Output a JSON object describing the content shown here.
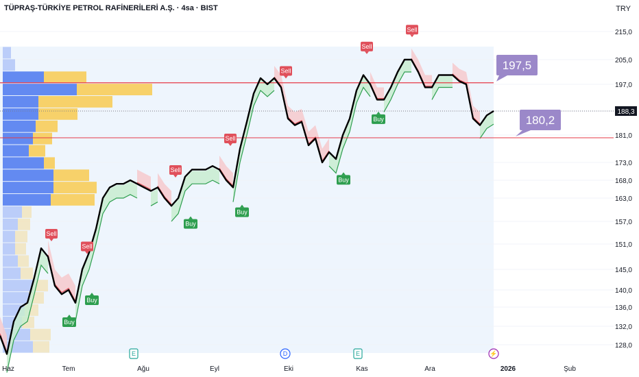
{
  "header": {
    "title": "TÜPRAŞ-TÜRKİYE PETROL RAFİNERİLERİ A.Ş. · 4sa · BIST",
    "currency": "TRY"
  },
  "colors": {
    "price_line": "#000000",
    "bull_fill": "#c8ecd0",
    "bull_line": "#2e9e4f",
    "bear_fill": "#f6c9cc",
    "bear_line": "#e0505b",
    "buy": "#2e9e4f",
    "sell": "#e0505b",
    "level": "#e63946",
    "callout": "#9b88c9",
    "vp_blue": "#5b84f0",
    "vp_yellow": "#f7cf62",
    "panel_bg": "#eef5fd"
  },
  "chart_data": {
    "type": "line",
    "title": "TÜPRAŞ-TÜRKİYE PETROL RAFİNERİLERİ A.Ş. · 4sa · BIST",
    "currency": "TRY",
    "ylim": [
      125,
      218
    ],
    "y_ticks": [
      "215,0",
      "205,0",
      "197,0",
      "188,3",
      "181,0",
      "173,0",
      "168,0",
      "163,0",
      "157,0",
      "151,0",
      "145,0",
      "140,0",
      "136,0",
      "132,0",
      "128,0"
    ],
    "x_ticks": [
      "Haz",
      "Tem",
      "Ağu",
      "Eyl",
      "Eki",
      "Kas",
      "Ara",
      "2026",
      "Şub"
    ],
    "last_price": 188.3,
    "last_price_label": "188,3",
    "levels": [
      {
        "value": 197.5,
        "label": "197,5"
      },
      {
        "value": 180.2,
        "label": "180,2"
      }
    ],
    "series": [
      {
        "x": [
          0,
          10,
          20,
          30,
          40,
          50,
          60,
          70,
          80,
          90,
          100,
          110,
          120,
          130,
          140,
          150,
          160,
          170,
          180,
          190,
          200,
          210,
          220,
          230,
          240,
          250,
          260,
          270,
          280,
          290,
          300,
          310,
          320,
          330,
          340,
          350,
          360,
          370,
          380,
          390,
          400,
          410,
          420,
          430,
          440,
          450,
          460,
          470,
          480,
          490,
          500,
          510,
          520,
          530,
          540,
          550,
          560,
          570,
          580,
          590,
          600,
          610,
          620,
          630,
          640,
          650,
          660,
          670,
          680,
          690,
          700,
          710,
          720
        ],
        "values": [
          130,
          126,
          133,
          136,
          137,
          143,
          150,
          148,
          141,
          139,
          140,
          137,
          145,
          149,
          155,
          163,
          166,
          167,
          167,
          168,
          167,
          166,
          165,
          166,
          163,
          161,
          163,
          169,
          171,
          171,
          171,
          172,
          171,
          168,
          166,
          177,
          185,
          194,
          199,
          197,
          199,
          196,
          186,
          184,
          185,
          178,
          180,
          173,
          176,
          174,
          181,
          186,
          195,
          200,
          197,
          192,
          192,
          196,
          201,
          205,
          205,
          201,
          196,
          196,
          200,
          200,
          200,
          198,
          197,
          186,
          184,
          187,
          188.3
        ]
      }
    ],
    "signals": [
      {
        "type": "Sell",
        "x": 75,
        "y": 151
      },
      {
        "type": "Sell",
        "x": 127,
        "y": 148
      },
      {
        "type": "Buy",
        "x": 101,
        "y": 135
      },
      {
        "type": "Buy",
        "x": 134,
        "y": 140
      },
      {
        "type": "Sell",
        "x": 256,
        "y": 168
      },
      {
        "type": "Buy",
        "x": 278,
        "y": 159
      },
      {
        "type": "Sell",
        "x": 336,
        "y": 177
      },
      {
        "type": "Buy",
        "x": 353,
        "y": 162
      },
      {
        "type": "Sell",
        "x": 417,
        "y": 198
      },
      {
        "type": "Buy",
        "x": 501,
        "y": 171
      },
      {
        "type": "Sell",
        "x": 535,
        "y": 206
      },
      {
        "type": "Buy",
        "x": 552,
        "y": 189
      },
      {
        "type": "Sell",
        "x": 601,
        "y": 212
      }
    ],
    "events": [
      {
        "label": "E",
        "x": 195
      },
      {
        "label": "D",
        "x": 416
      },
      {
        "label": "E",
        "x": 522
      },
      {
        "label": "⚡",
        "x": 720
      }
    ],
    "volume_profile": {
      "bands": [
        {
          "blue": 12,
          "yellow": 0
        },
        {
          "blue": 18,
          "yellow": 0
        },
        {
          "blue": 60,
          "yellow": 62
        },
        {
          "blue": 108,
          "yellow": 110
        },
        {
          "blue": 52,
          "yellow": 108
        },
        {
          "blue": 52,
          "yellow": 57
        },
        {
          "blue": 48,
          "yellow": 32
        },
        {
          "blue": 44,
          "yellow": 28
        },
        {
          "blue": 38,
          "yellow": 24
        },
        {
          "blue": 60,
          "yellow": 16
        },
        {
          "blue": 74,
          "yellow": 52
        },
        {
          "blue": 74,
          "yellow": 63
        },
        {
          "blue": 70,
          "yellow": 64
        },
        {
          "blue": 28,
          "yellow": 14
        },
        {
          "blue": 22,
          "yellow": 18
        },
        {
          "blue": 18,
          "yellow": 18
        },
        {
          "blue": 18,
          "yellow": 16
        },
        {
          "blue": 22,
          "yellow": 16
        },
        {
          "blue": 26,
          "yellow": 18
        },
        {
          "blue": 44,
          "yellow": 22
        },
        {
          "blue": 38,
          "yellow": 22
        },
        {
          "blue": 32,
          "yellow": 20
        },
        {
          "blue": 28,
          "yellow": 18
        },
        {
          "blue": 40,
          "yellow": 30
        },
        {
          "blue": 44,
          "yellow": 24
        }
      ]
    }
  }
}
